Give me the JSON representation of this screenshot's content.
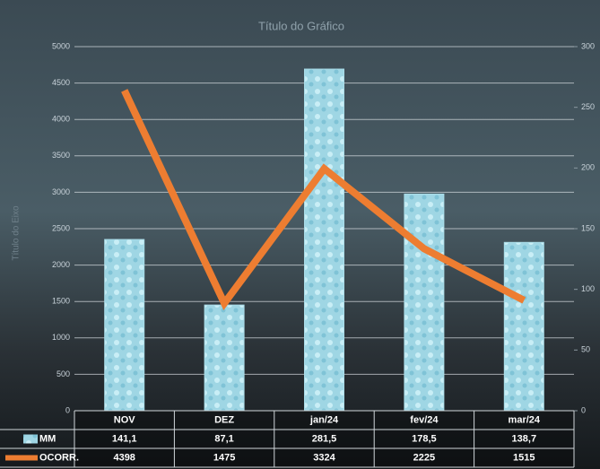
{
  "chart_data": {
    "type": "bar",
    "title": "Título do Gráfico",
    "y_axis_label": "Título do Eixo",
    "categories": [
      "NOV",
      "DEZ",
      "jan/24",
      "fev/24",
      "mar/24"
    ],
    "series": [
      {
        "name": "MM",
        "type": "bar",
        "axis": "y2",
        "color": "#a9dce8",
        "values": [
          141.1,
          87.1,
          281.5,
          178.5,
          138.7
        ],
        "value_labels": [
          "141,1",
          "87,1",
          "281,5",
          "178,5",
          "138,7"
        ]
      },
      {
        "name": "OCORR.",
        "type": "line",
        "color": "#ed7d31",
        "values": [
          4398,
          1475,
          3324,
          2225,
          1515
        ]
      }
    ],
    "ylim": [
      0,
      5000
    ],
    "yticks": [
      0,
      500,
      1000,
      1500,
      2000,
      2500,
      3000,
      3500,
      4000,
      4500,
      5000
    ],
    "y2lim": [
      0,
      300
    ],
    "y2ticks": [
      0,
      50,
      100,
      150,
      200,
      250,
      300
    ],
    "grid": true
  }
}
